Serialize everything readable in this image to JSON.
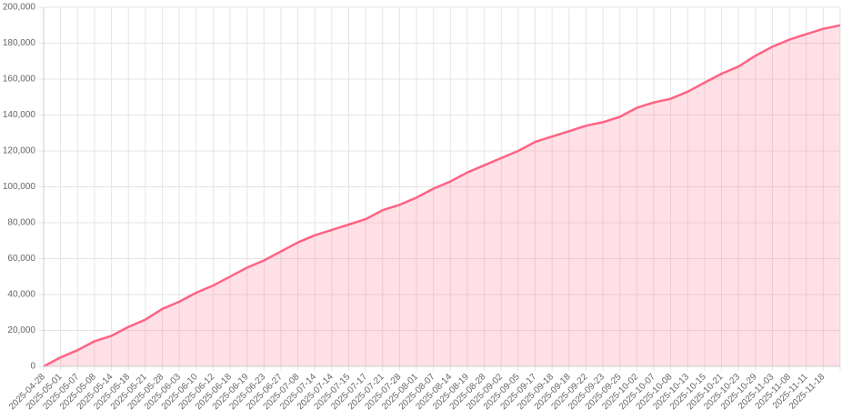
{
  "chart_data": {
    "type": "area",
    "categories": [
      "2025-04-28",
      "2025-05-01",
      "2025-05-07",
      "2025-05-08",
      "2025-05-14",
      "2025-05-18",
      "2025-05-21",
      "2025-05-28",
      "2025-06-03",
      "2025-06-10",
      "2025-06-12",
      "2025-06-18",
      "2025-06-19",
      "2025-06-23",
      "2025-06-27",
      "2025-07-08",
      "2025-07-14",
      "2025-07-14",
      "2025-07-15",
      "2025-07-17",
      "2025-07-21",
      "2025-07-28",
      "2025-08-01",
      "2025-08-07",
      "2025-08-14",
      "2025-08-19",
      "2025-08-28",
      "2025-09-02",
      "2025-09-05",
      "2025-09-17",
      "2025-09-18",
      "2025-09-18",
      "2025-09-22",
      "2025-09-23",
      "2025-09-25",
      "2025-10-02",
      "2025-10-07",
      "2025-10-08",
      "2025-10-13",
      "2025-10-15",
      "2025-10-21",
      "2025-10-23",
      "2025-10-29",
      "2025-11-03",
      "2025-11-08",
      "2025-11-11",
      "2025-11-18",
      null
    ],
    "values": [
      0,
      5000,
      9000,
      14000,
      17000,
      22000,
      26000,
      32000,
      36000,
      41000,
      45000,
      50000,
      55000,
      59000,
      64000,
      69000,
      73000,
      76000,
      79000,
      82000,
      87000,
      90000,
      94000,
      99000,
      103000,
      108000,
      112000,
      116000,
      120000,
      125000,
      128000,
      131000,
      134000,
      136000,
      139000,
      144000,
      147000,
      149000,
      153000,
      158000,
      163000,
      167000,
      173000,
      178000,
      182000,
      185000,
      188000,
      190000
    ],
    "color": "#ff6384",
    "fill": "rgba(255,99,132,0.2)",
    "ylim": [
      0,
      200000
    ],
    "yticks": [
      0,
      {
        "value": 20000,
        "label": "20,000"
      },
      {
        "value": 40000,
        "label": "40,000"
      },
      {
        "value": 60000,
        "label": "60,000"
      },
      {
        "value": 80000,
        "label": "80,000"
      },
      {
        "value": 100000,
        "label": "100,000"
      },
      {
        "value": 120000,
        "label": "120,000"
      },
      {
        "value": 140000,
        "label": "140,000"
      },
      {
        "value": 160000,
        "label": "160,000"
      },
      {
        "value": 180000,
        "label": "180,000"
      },
      {
        "value": 200000,
        "label": "200,000"
      }
    ],
    "grid": true
  }
}
